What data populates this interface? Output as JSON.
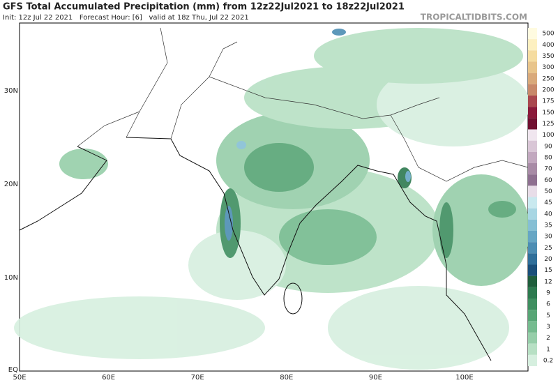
{
  "header": {
    "title": "GFS Total Accumulated Precipitation (mm) from 12z22Jul2021 to 18z22Jul2021",
    "info": "Init: 12z Jul 22 2021   Forecast Hour: [6]   valid at 18z Thu, Jul 22 2021",
    "watermark": "TROPICALTIDBITS.COM"
  },
  "map": {
    "lat_labels": [
      "30N",
      "20N",
      "10N",
      "EQ"
    ],
    "lon_labels": [
      "50E",
      "60E",
      "70E",
      "80E",
      "90E",
      "100E"
    ]
  },
  "colorbar": {
    "levels": [
      500,
      400,
      350,
      300,
      250,
      200,
      175,
      150,
      125,
      100,
      90,
      80,
      70,
      60,
      50,
      45,
      40,
      35,
      30,
      25,
      20,
      15,
      12,
      9,
      6,
      5,
      3,
      2,
      1,
      0.2
    ],
    "colors": [
      "#fffbe0",
      "#fdf0c0",
      "#f5dca0",
      "#e8c48a",
      "#d9a97a",
      "#c8896a",
      "#a9484f",
      "#8a1a3a",
      "#701030",
      "#f0e6ef",
      "#d9c6d6",
      "#c2a8bf",
      "#a88ba6",
      "#8e7090",
      "#e8dde8",
      "#c9e9ef",
      "#a8d6e3",
      "#86bfd4",
      "#66a6c4",
      "#4c8db3",
      "#2f6f9a",
      "#1a4f7a",
      "#1f5e3c",
      "#2d7a4f",
      "#3f8f60",
      "#57a575",
      "#75bb8f",
      "#96cea9",
      "#b7e0c4",
      "#d6efdf"
    ]
  }
}
